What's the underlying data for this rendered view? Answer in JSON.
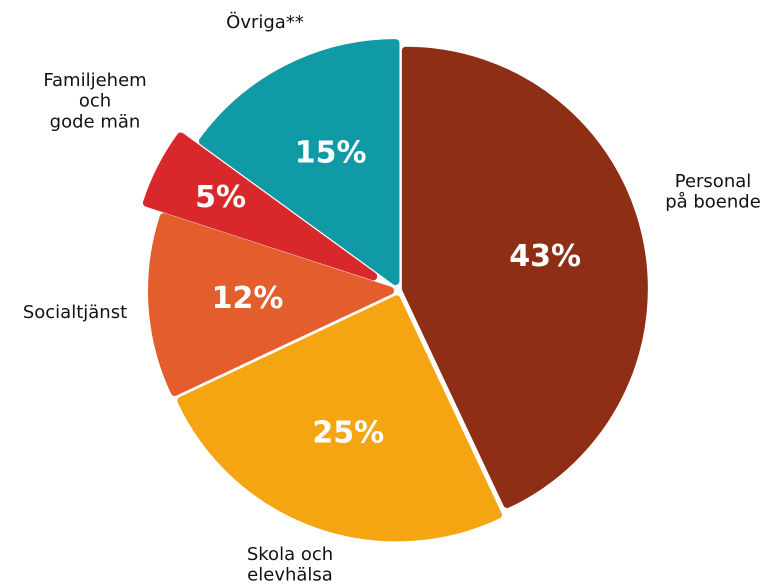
{
  "chart_data": {
    "type": "pie",
    "categories": [
      "Personal\npå boende",
      "Skola och\nelevhälsa",
      "Socialtjänst",
      "Familjehem\noch\ngode män",
      "Övriga**"
    ],
    "values": [
      43,
      25,
      12,
      5,
      15
    ],
    "value_labels": [
      "43%",
      "25%",
      "12%",
      "5%",
      "15%"
    ],
    "colors": [
      "#8e2e14",
      "#f5a511",
      "#e45d2c",
      "#d8282c",
      "#0f9aa6"
    ]
  }
}
